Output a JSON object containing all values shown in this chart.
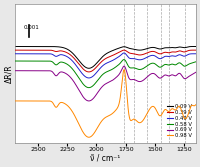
{
  "xlabel": "ν̃ / cm⁻¹",
  "ylabel": "ΔR/R",
  "xlim": [
    2700,
    1150
  ],
  "background_color": "#e8e8e8",
  "plot_bg": "#ffffff",
  "dashed_lines": [
    1760,
    1680,
    1570,
    1450,
    1380,
    1240
  ],
  "scale_bar_value": 0.001,
  "xticks": [
    2500,
    2250,
    2000,
    1750,
    1500,
    1250
  ],
  "legend_entries": [
    {
      "label": "0.09 V",
      "color": "#000000"
    },
    {
      "label": "0.39 V",
      "color": "#cc0000"
    },
    {
      "label": "0.49 V",
      "color": "#2222cc"
    },
    {
      "label": "0.58 V",
      "color": "#008800"
    },
    {
      "label": "0.69 V",
      "color": "#880088"
    },
    {
      "label": "0.98 V",
      "color": "#ff8800"
    }
  ]
}
